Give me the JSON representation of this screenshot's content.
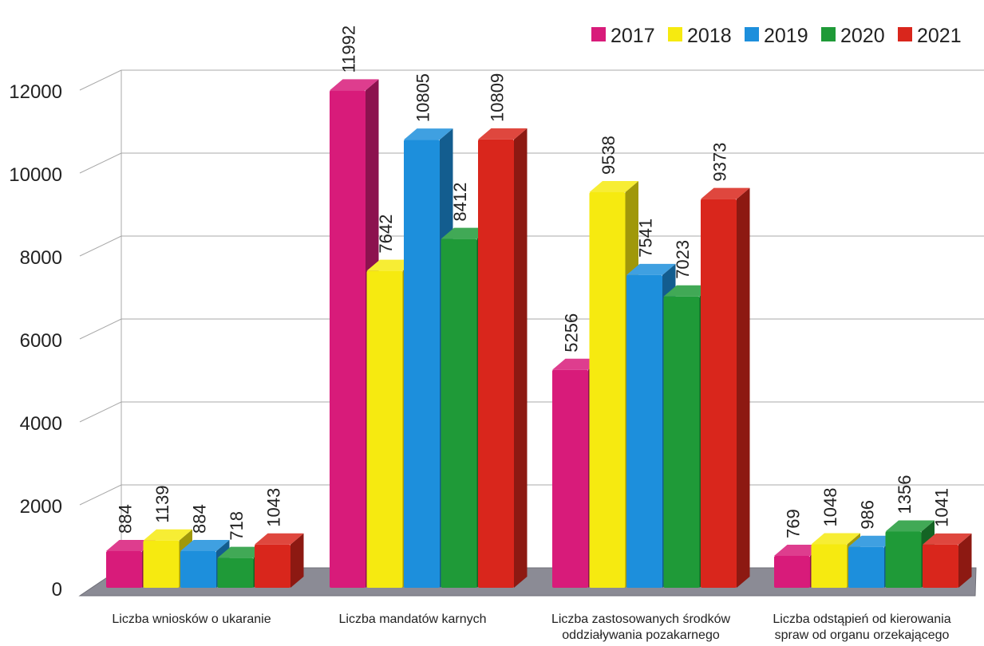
{
  "chart_data": {
    "type": "bar",
    "categories": [
      [
        "Liczba wniosków o ukaranie"
      ],
      [
        "Liczba mandatów karnych"
      ],
      [
        "Liczba zastosowanych środków",
        "oddziaływania pozakarnego"
      ],
      [
        "Liczba odstąpień od kierowania",
        "spraw od organu orzekającego"
      ]
    ],
    "series": [
      {
        "name": "2017",
        "color": "#d81b7a",
        "values": [
          884,
          11992,
          5256,
          769
        ]
      },
      {
        "name": "2018",
        "color": "#f6ea10",
        "values": [
          1139,
          7642,
          9538,
          1048
        ]
      },
      {
        "name": "2019",
        "color": "#1d8fdc",
        "values": [
          884,
          10805,
          7541,
          986
        ]
      },
      {
        "name": "2020",
        "color": "#1f9a38",
        "values": [
          718,
          8412,
          7023,
          1356
        ]
      },
      {
        "name": "2021",
        "color": "#d9261c",
        "values": [
          1043,
          10809,
          9373,
          1041
        ]
      }
    ],
    "ylim": [
      0,
      12000
    ],
    "yticks": [
      0,
      2000,
      4000,
      6000,
      8000,
      10000,
      12000
    ],
    "grid": true,
    "legend": "top-right",
    "style": "3d-bars"
  }
}
